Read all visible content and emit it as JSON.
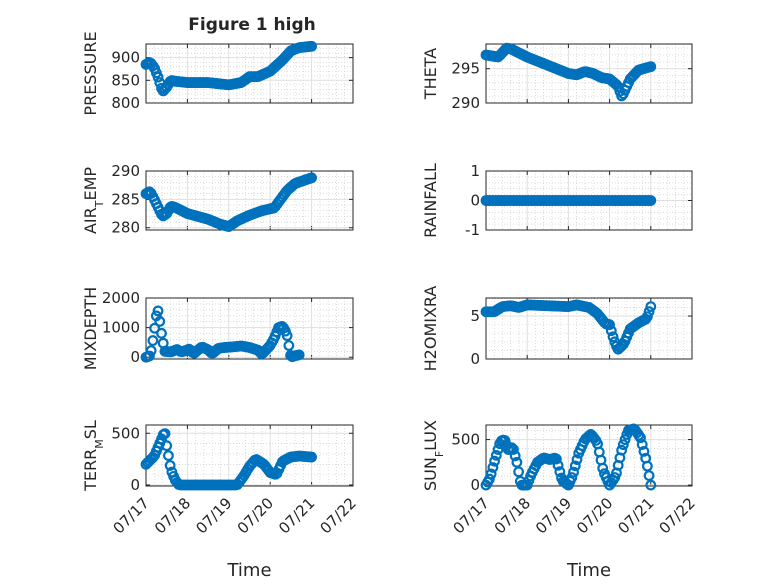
{
  "figure": {
    "title": "Figure 1 high",
    "marker_color": "#0072bd",
    "grid": "major and minor",
    "marker": "open-circle"
  },
  "chart_data": [
    {
      "type": "scatter",
      "ylabel": "PRESSURE",
      "xlabel": "",
      "xlim": [
        0,
        5
      ],
      "xticks": [
        0,
        1,
        2,
        3,
        4,
        5
      ],
      "xticklabels": [],
      "ylim": [
        800,
        930
      ],
      "yticks": [
        800,
        850,
        900
      ],
      "yticklabels": [
        "800",
        "850",
        "900"
      ],
      "anchors": [
        [
          0,
          885
        ],
        [
          0.1,
          890
        ],
        [
          0.2,
          878
        ],
        [
          0.3,
          855
        ],
        [
          0.4,
          825
        ],
        [
          0.5,
          835
        ],
        [
          0.6,
          850
        ],
        [
          0.7,
          848
        ],
        [
          1.0,
          845
        ],
        [
          1.5,
          845
        ],
        [
          2.0,
          840
        ],
        [
          2.3,
          845
        ],
        [
          2.5,
          858
        ],
        [
          2.7,
          858
        ],
        [
          3.0,
          870
        ],
        [
          3.3,
          895
        ],
        [
          3.5,
          915
        ],
        [
          3.7,
          922
        ],
        [
          4.0,
          925
        ]
      ],
      "count": 97
    },
    {
      "type": "scatter",
      "ylabel": "THETA",
      "xlabel": "",
      "xlim": [
        0,
        5
      ],
      "xticks": [
        0,
        1,
        2,
        3,
        4,
        5
      ],
      "xticklabels": [],
      "ylim": [
        290,
        298.6
      ],
      "yticks": [
        290,
        295
      ],
      "yticklabels": [
        "290",
        "295"
      ],
      "anchors": [
        [
          0,
          297
        ],
        [
          0.3,
          296.7
        ],
        [
          0.5,
          298
        ],
        [
          0.6,
          297.9
        ],
        [
          1.0,
          296.7
        ],
        [
          1.5,
          295.5
        ],
        [
          2.0,
          294.3
        ],
        [
          2.2,
          294.1
        ],
        [
          2.4,
          294.6
        ],
        [
          2.6,
          294.3
        ],
        [
          2.8,
          293.7
        ],
        [
          3.0,
          293.5
        ],
        [
          3.2,
          292.5
        ],
        [
          3.3,
          290.9
        ],
        [
          3.5,
          293.5
        ],
        [
          3.7,
          294.8
        ],
        [
          4.0,
          295.3
        ]
      ],
      "count": 97
    },
    {
      "type": "scatter",
      "ylabel": "AIR_TEMP",
      "xlabel": "",
      "xlim": [
        0,
        5
      ],
      "xticks": [
        0,
        1,
        2,
        3,
        4,
        5
      ],
      "xticklabels": [],
      "ylim": [
        279.6,
        290
      ],
      "yticks": [
        280,
        285,
        290
      ],
      "yticklabels": [
        "280",
        "285",
        "290"
      ],
      "anchors": [
        [
          0,
          286
        ],
        [
          0.1,
          286.4
        ],
        [
          0.2,
          285
        ],
        [
          0.3,
          283.5
        ],
        [
          0.4,
          282
        ],
        [
          0.5,
          282.5
        ],
        [
          0.6,
          283.8
        ],
        [
          0.7,
          283.6
        ],
        [
          1.0,
          282.5
        ],
        [
          1.5,
          281.5
        ],
        [
          1.8,
          280.6
        ],
        [
          2.0,
          280.2
        ],
        [
          2.2,
          281.2
        ],
        [
          2.5,
          282.2
        ],
        [
          2.8,
          283
        ],
        [
          3.1,
          283.5
        ],
        [
          3.4,
          286.5
        ],
        [
          3.6,
          287.8
        ],
        [
          4.0,
          288.8
        ]
      ],
      "count": 97
    },
    {
      "type": "scatter",
      "ylabel": "RAINFALL",
      "xlabel": "",
      "xlim": [
        0,
        5
      ],
      "xticks": [
        0,
        1,
        2,
        3,
        4,
        5
      ],
      "xticklabels": [],
      "ylim": [
        -1,
        1
      ],
      "yticks": [
        -1,
        0,
        1
      ],
      "yticklabels": [
        "-1",
        "0",
        "1"
      ],
      "anchors": [
        [
          0,
          0
        ],
        [
          4.0,
          0
        ]
      ],
      "count": 97
    },
    {
      "type": "scatter",
      "ylabel": "MIXDEPTH",
      "xlabel": "",
      "xlim": [
        0,
        5
      ],
      "xticks": [
        0,
        1,
        2,
        3,
        4,
        5
      ],
      "xticklabels": [],
      "ylim": [
        -60,
        2000
      ],
      "yticks": [
        0,
        1000,
        2000
      ],
      "yticklabels": [
        "0",
        "1000",
        "2000"
      ],
      "anchors": [
        [
          0,
          0
        ],
        [
          0.1,
          50
        ],
        [
          0.15,
          400
        ],
        [
          0.2,
          900
        ],
        [
          0.25,
          1400
        ],
        [
          0.3,
          1600
        ],
        [
          0.35,
          1000
        ],
        [
          0.45,
          200
        ],
        [
          0.6,
          180
        ],
        [
          0.75,
          260
        ],
        [
          0.85,
          180
        ],
        [
          0.95,
          220
        ],
        [
          1.05,
          280
        ],
        [
          1.15,
          120
        ],
        [
          1.35,
          350
        ],
        [
          1.5,
          250
        ],
        [
          1.6,
          120
        ],
        [
          1.75,
          300
        ],
        [
          1.9,
          330
        ],
        [
          2.1,
          350
        ],
        [
          2.3,
          380
        ],
        [
          2.5,
          330
        ],
        [
          2.7,
          240
        ],
        [
          2.8,
          100
        ],
        [
          3.0,
          400
        ],
        [
          3.1,
          650
        ],
        [
          3.2,
          1000
        ],
        [
          3.3,
          1050
        ],
        [
          3.4,
          800
        ],
        [
          3.5,
          0
        ],
        [
          3.6,
          50
        ],
        [
          3.7,
          80
        ]
      ],
      "count": 90
    },
    {
      "type": "scatter",
      "ylabel": "H2OMIXRA",
      "xlabel": "",
      "xlim": [
        0,
        5
      ],
      "xticks": [
        0,
        1,
        2,
        3,
        4,
        5
      ],
      "xticklabels": [],
      "ylim": [
        0,
        7.1
      ],
      "yticks": [
        0,
        5
      ],
      "yticklabels": [
        "0",
        "5"
      ],
      "anchors": [
        [
          0,
          5.5
        ],
        [
          0.2,
          5.5
        ],
        [
          0.4,
          6.1
        ],
        [
          0.6,
          6.2
        ],
        [
          0.8,
          6
        ],
        [
          1.0,
          6.3
        ],
        [
          1.5,
          6.2
        ],
        [
          2.0,
          6.1
        ],
        [
          2.2,
          6.3
        ],
        [
          2.5,
          6
        ],
        [
          2.7,
          5.3
        ],
        [
          2.9,
          4.1
        ],
        [
          3.0,
          4
        ],
        [
          3.1,
          2.3
        ],
        [
          3.2,
          1.1
        ],
        [
          3.35,
          1.8
        ],
        [
          3.5,
          3.5
        ],
        [
          3.7,
          4.2
        ],
        [
          3.9,
          4.7
        ],
        [
          4.0,
          6.1
        ]
      ],
      "count": 97
    },
    {
      "type": "scatter",
      "ylabel": "TERR_MSL",
      "xlabel": "Time",
      "xlim": [
        0,
        5
      ],
      "xticks": [
        0,
        1,
        2,
        3,
        4,
        5
      ],
      "xticklabels": [
        "07/17",
        "07/18",
        "07/19",
        "07/20",
        "07/21",
        "07/22"
      ],
      "ylim": [
        -10,
        580
      ],
      "yticks": [
        0,
        500
      ],
      "yticklabels": [
        "0",
        "500"
      ],
      "anchors": [
        [
          0,
          200
        ],
        [
          0.2,
          280
        ],
        [
          0.35,
          420
        ],
        [
          0.45,
          520
        ],
        [
          0.5,
          380
        ],
        [
          0.6,
          150
        ],
        [
          0.7,
          50
        ],
        [
          0.8,
          0
        ],
        [
          1.5,
          0
        ],
        [
          2.0,
          0
        ],
        [
          2.2,
          0
        ],
        [
          2.35,
          80
        ],
        [
          2.5,
          180
        ],
        [
          2.65,
          250
        ],
        [
          2.85,
          200
        ],
        [
          3.0,
          120
        ],
        [
          3.15,
          100
        ],
        [
          3.3,
          230
        ],
        [
          3.5,
          270
        ],
        [
          3.7,
          280
        ],
        [
          4.0,
          270
        ]
      ],
      "count": 97
    },
    {
      "type": "scatter",
      "ylabel": "SUN_FLUX",
      "xlabel": "Time",
      "xlim": [
        0,
        5
      ],
      "xticks": [
        0,
        1,
        2,
        3,
        4,
        5
      ],
      "xticklabels": [
        "07/17",
        "07/18",
        "07/19",
        "07/20",
        "07/21",
        "07/22"
      ],
      "ylim": [
        -10,
        660
      ],
      "yticks": [
        0,
        500
      ],
      "yticklabels": [
        "0",
        "500"
      ],
      "anchors": [
        [
          0,
          0
        ],
        [
          0.1,
          80
        ],
        [
          0.2,
          250
        ],
        [
          0.35,
          480
        ],
        [
          0.45,
          500
        ],
        [
          0.55,
          380
        ],
        [
          0.65,
          420
        ],
        [
          0.75,
          250
        ],
        [
          0.85,
          0
        ],
        [
          1.0,
          0
        ],
        [
          1.1,
          120
        ],
        [
          1.25,
          250
        ],
        [
          1.4,
          300
        ],
        [
          1.55,
          280
        ],
        [
          1.7,
          300
        ],
        [
          1.85,
          50
        ],
        [
          2.0,
          0
        ],
        [
          2.1,
          100
        ],
        [
          2.25,
          350
        ],
        [
          2.4,
          500
        ],
        [
          2.55,
          560
        ],
        [
          2.7,
          470
        ],
        [
          2.85,
          150
        ],
        [
          3.0,
          0
        ],
        [
          3.15,
          100
        ],
        [
          3.3,
          400
        ],
        [
          3.45,
          600
        ],
        [
          3.6,
          620
        ],
        [
          3.75,
          520
        ],
        [
          3.9,
          250
        ],
        [
          4.0,
          0
        ]
      ],
      "count": 97
    }
  ]
}
